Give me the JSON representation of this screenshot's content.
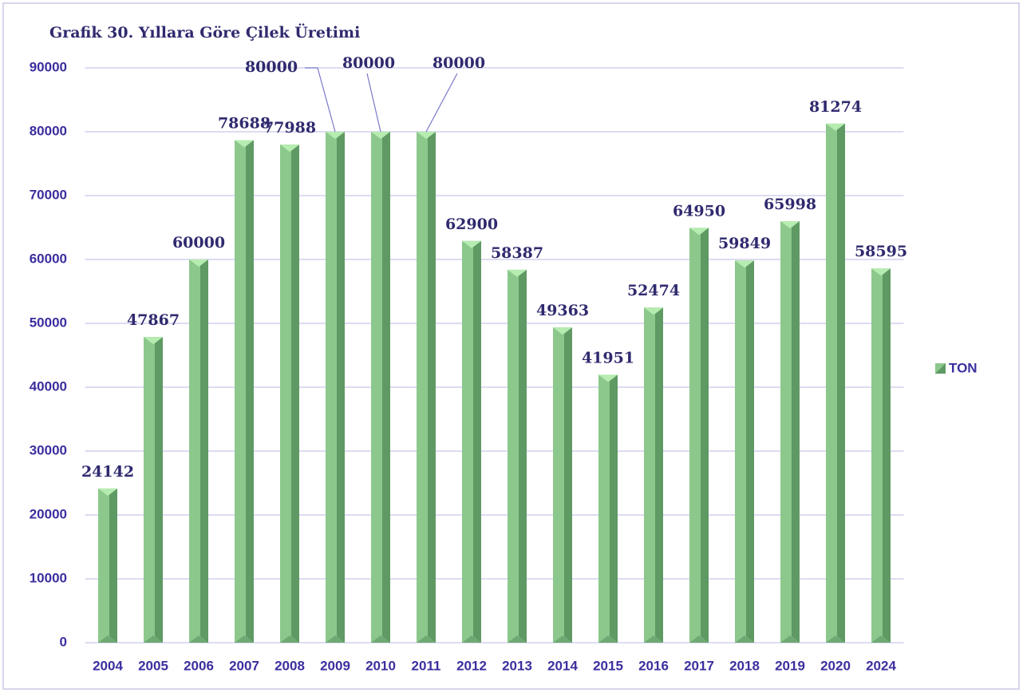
{
  "chart_data": {
    "type": "bar",
    "title": "Grafik 30. Yıllara Göre Çilek Üretimi",
    "categories": [
      "2004",
      "2005",
      "2006",
      "2007",
      "2008",
      "2009",
      "2010",
      "2011",
      "2012",
      "2013",
      "2014",
      "2015",
      "2016",
      "2017",
      "2018",
      "2019",
      "2020",
      "2024"
    ],
    "series": [
      {
        "name": "TON",
        "color": "#8cc88c",
        "values": [
          24142,
          47867,
          60000,
          78688,
          77988,
          80000,
          80000,
          80000,
          62900,
          58387,
          49363,
          41951,
          52474,
          64950,
          59849,
          65998,
          81274,
          58595
        ]
      }
    ],
    "ylim": [
      0,
      90000
    ],
    "yticks": [
      0,
      10000,
      20000,
      30000,
      40000,
      50000,
      60000,
      70000,
      80000,
      90000
    ],
    "grid": true,
    "legend": "right"
  }
}
